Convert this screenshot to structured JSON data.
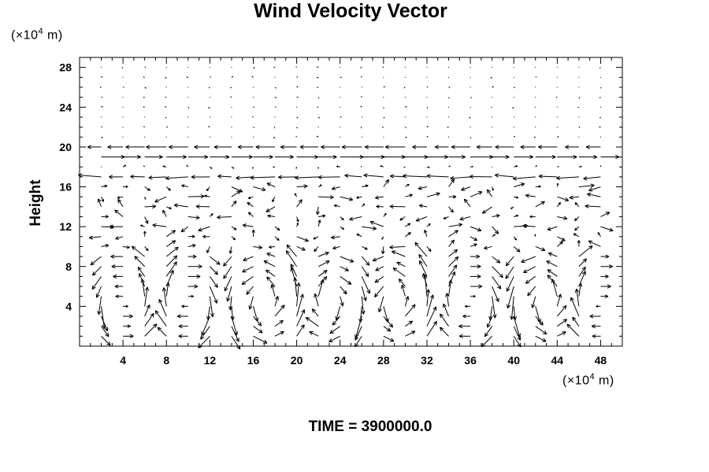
{
  "chart_data": {
    "type": "vector_field",
    "title": "Wind Velocity Vector",
    "ylabel": "Height",
    "xlabel": "",
    "x_unit": {
      "prefix": "(×10",
      "exp": "4",
      "suffix": " m)"
    },
    "y_unit": {
      "prefix": "(×10",
      "exp": "4",
      "suffix": " m)"
    },
    "xlim": [
      0,
      50
    ],
    "ylim": [
      0,
      29
    ],
    "x_ticks": [
      4,
      8,
      12,
      16,
      20,
      24,
      28,
      32,
      36,
      40,
      44,
      48
    ],
    "y_ticks": [
      4,
      8,
      12,
      16,
      20,
      24,
      28
    ],
    "footer": "TIME = 3900000.0",
    "grid": false,
    "x_spacing": 2,
    "y_levels": [
      1,
      2,
      3,
      4,
      5,
      6,
      7,
      8,
      9,
      10,
      11,
      12,
      13,
      14,
      15,
      16,
      17,
      18,
      19,
      20,
      21,
      22,
      23,
      24,
      25,
      26,
      27,
      28
    ],
    "regimes": {
      "upper_layer": {
        "from": 21,
        "to": 28,
        "speed": 0.05,
        "note": "nearly calm"
      },
      "jet_20": {
        "level": 20,
        "direction": "westward",
        "speed": 0.9
      },
      "jet_19": {
        "level": 19,
        "direction": "eastward",
        "speed": 1.1
      },
      "jet_17": {
        "level": 17,
        "direction": "westward",
        "speed": 1.0
      },
      "middle_layer": {
        "from": 10,
        "to": 16,
        "speed": 0.45,
        "note": "variable weak flow"
      },
      "lower_cells": {
        "from": 1,
        "to": 9,
        "speed": 0.9,
        "note": "convective rolls"
      }
    },
    "convective_cells_x_centers": [
      4,
      10,
      17,
      23,
      29,
      36,
      43,
      48
    ]
  }
}
